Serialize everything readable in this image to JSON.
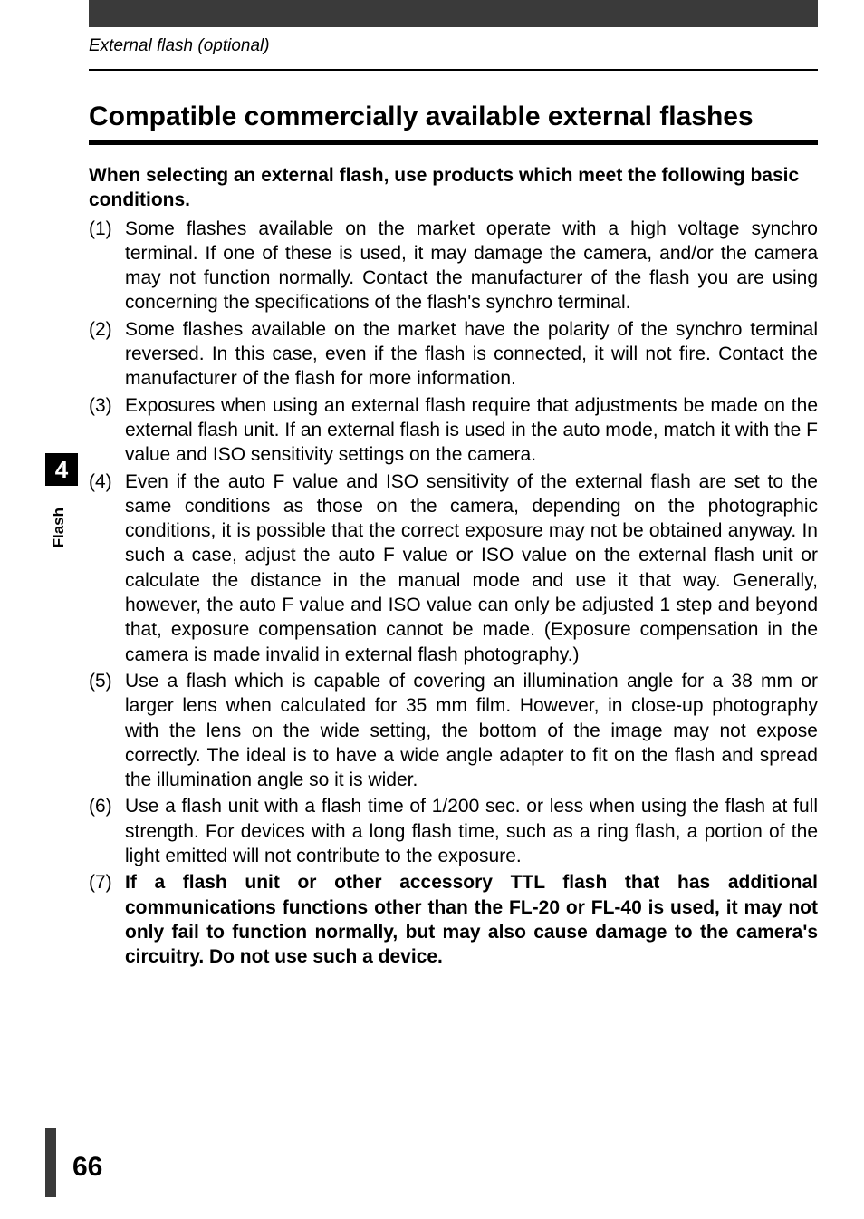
{
  "header": {
    "section_label": "External flash (optional)"
  },
  "heading": "Compatible commercially available external flashes",
  "intro": "When selecting an external flash, use products which meet the following basic conditions.",
  "items": [
    {
      "num": "(1)",
      "text": "Some flashes available on the market operate with a high voltage synchro terminal. If one of these is used, it may damage the camera, and/or the camera may not function normally. Contact the manufacturer of the flash you are using concerning the specifications of the flash's synchro terminal."
    },
    {
      "num": "(2)",
      "text": "Some flashes available on the market have the polarity of the synchro terminal reversed. In this case, even if the flash is connected, it will not fire. Contact the manufacturer of the flash for more information."
    },
    {
      "num": "(3)",
      "text": "Exposures when using an external flash require that adjustments be made on the external flash unit. If an external flash is used in the auto mode, match it with the F value and ISO sensitivity settings on the camera."
    },
    {
      "num": "(4)",
      "text": "Even if the auto F value and ISO sensitivity of the external flash are set to the same conditions as those on the camera, depending on the photographic conditions, it is possible that the correct exposure may not be obtained anyway. In such a case, adjust the auto F value or ISO value on the external flash unit or calculate the distance in the manual mode and use it that way. Generally, however, the auto F value and ISO value can only be adjusted 1 step and beyond that, exposure compensation cannot be made. (Exposure compensation in the camera is made invalid in external flash photography.)"
    },
    {
      "num": "(5)",
      "text": "Use a flash which is capable of covering an illumination angle for a 38 mm or larger lens when calculated for 35 mm film. However, in close-up photography with the lens on the wide setting, the bottom of the image may not expose correctly. The ideal is to have a wide angle adapter to fit on the flash and spread the illumination angle so it is wider."
    },
    {
      "num": "(6)",
      "text": "Use a flash unit with a flash time of 1/200 sec. or less when using the flash at full strength. For devices with a long flash time, such as a ring flash, a portion of the light emitted will not contribute to the exposure."
    },
    {
      "num": "(7)",
      "text_bold": "If a flash unit or other accessory TTL flash that has additional communications functions other than the FL-20 or FL-40 is used, it may not only fail to function normally, but may also cause damage to the camera's circuitry. Do not use such a device."
    }
  ],
  "sidebar": {
    "chapter_number": "4",
    "chapter_label": "Flash"
  },
  "page_number": "66"
}
